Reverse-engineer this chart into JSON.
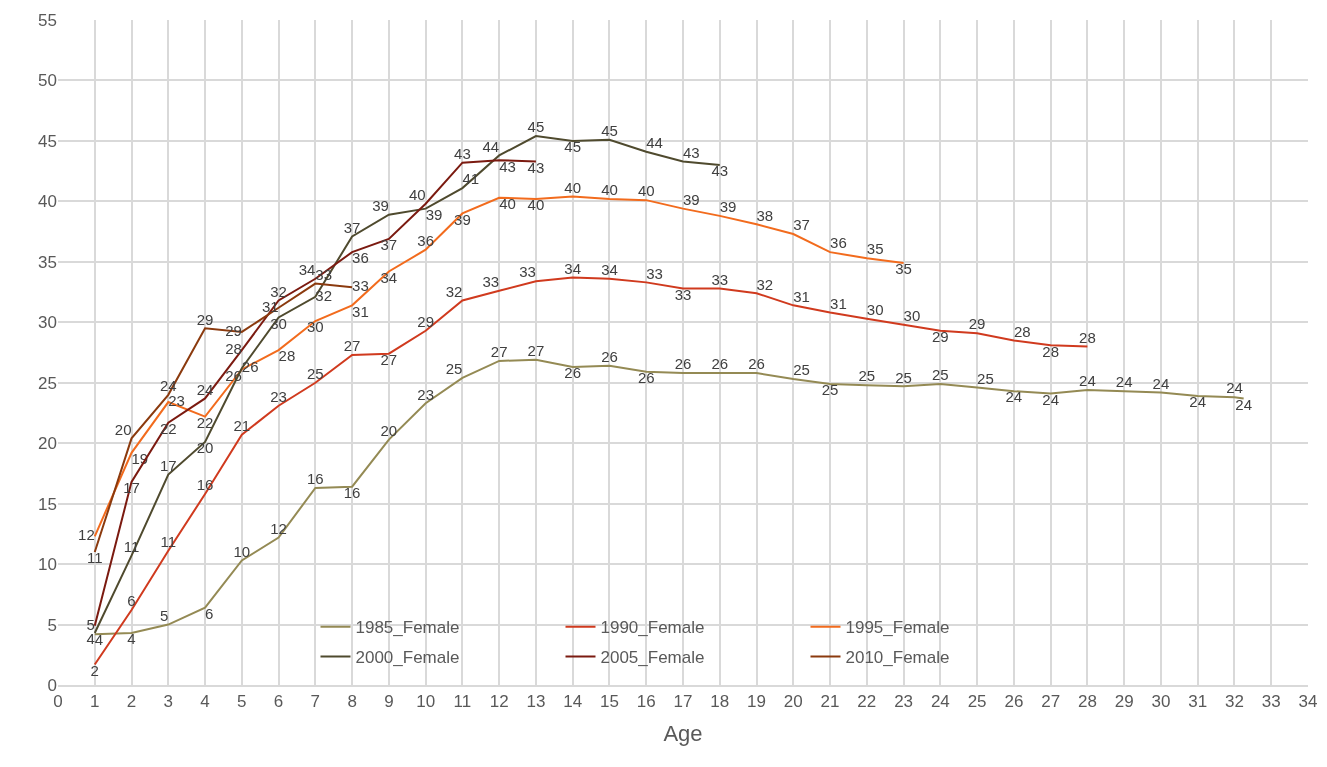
{
  "chart_data": {
    "type": "line",
    "xlabel": "Age",
    "xlim": [
      0,
      34
    ],
    "xticks": [
      0,
      1,
      2,
      3,
      4,
      5,
      6,
      7,
      8,
      9,
      10,
      11,
      12,
      13,
      14,
      15,
      16,
      17,
      18,
      19,
      20,
      21,
      22,
      23,
      24,
      25,
      26,
      27,
      28,
      29,
      30,
      31,
      32,
      33,
      34
    ],
    "ylim": [
      0,
      55
    ],
    "yticks": [
      0,
      5,
      10,
      15,
      20,
      25,
      30,
      35,
      40,
      45,
      50,
      55
    ],
    "grid": true,
    "legend": "bottom",
    "line_style": "solid",
    "series": [
      {
        "name": "1985_Female",
        "color": "#948a54",
        "x": [
          1,
          2,
          3,
          4,
          5,
          6,
          7,
          8,
          9,
          10,
          11,
          12,
          13,
          14,
          15,
          16,
          17,
          18,
          19,
          20,
          21,
          22,
          23,
          24,
          25,
          26,
          27,
          28,
          29,
          30,
          31,
          32,
          32.25
        ],
        "values": [
          4.2,
          4.3,
          5.0,
          6.4,
          10.3,
          12.2,
          16.3,
          16.4,
          20.3,
          23.3,
          25.4,
          26.8,
          26.9,
          26.3,
          26.4,
          25.9,
          25.8,
          25.8,
          25.8,
          25.3,
          24.9,
          24.8,
          24.7,
          24.9,
          24.6,
          24.3,
          24.1,
          24.4,
          24.3,
          24.2,
          23.9,
          23.8,
          23.7
        ],
        "value_labels": [
          "4",
          "4",
          "5",
          "6",
          "10",
          "12",
          "16",
          "16",
          "20",
          "23",
          "25",
          "27",
          "27",
          "26",
          "26",
          "26",
          "26",
          "26",
          "26",
          "25",
          "25",
          "25",
          "25",
          "25",
          "25",
          "24",
          "24",
          "24",
          "24",
          "24",
          "24",
          "24",
          "24"
        ]
      },
      {
        "name": "1990_Female",
        "color": "#d03a1e",
        "x": [
          1,
          2,
          3,
          4,
          5,
          6,
          7,
          8,
          9,
          10,
          11,
          12,
          13,
          14,
          15,
          16,
          17,
          18,
          19,
          20,
          21,
          22,
          23,
          24,
          25,
          26,
          27,
          28
        ],
        "values": [
          1.7,
          6.2,
          11.1,
          15.8,
          20.7,
          23.1,
          25.0,
          27.3,
          27.4,
          29.3,
          31.8,
          32.6,
          33.4,
          33.7,
          33.6,
          33.3,
          32.8,
          32.8,
          32.4,
          31.4,
          30.8,
          30.3,
          29.8,
          29.3,
          29.1,
          28.5,
          28.1,
          28.0
        ],
        "value_labels": [
          "2",
          "6",
          "11",
          "16",
          "21",
          "23",
          "25",
          "27",
          "27",
          "29",
          "32",
          "33",
          "33",
          "34",
          "34",
          "33",
          "33",
          "33",
          "32",
          "31",
          "31",
          "30",
          "30",
          "29",
          "29",
          "28",
          "28",
          "28"
        ]
      },
      {
        "name": "1995_Female",
        "color": "#f26b1d",
        "x": [
          1,
          2,
          3,
          4,
          5,
          6,
          7,
          8,
          9,
          10,
          11,
          12,
          13,
          14,
          15,
          16,
          17,
          18,
          19,
          20,
          21,
          22,
          23
        ],
        "values": [
          12.3,
          19.2,
          23.4,
          22.2,
          26.1,
          27.7,
          30.1,
          31.4,
          34.2,
          36.0,
          39.0,
          40.3,
          40.2,
          40.4,
          40.2,
          40.1,
          39.4,
          38.8,
          38.1,
          37.3,
          35.8,
          35.3,
          34.9
        ],
        "value_labels": [
          "12",
          "19",
          "23",
          "22",
          "26",
          "28",
          "30",
          "31",
          "34",
          "36",
          "39",
          "40",
          "40",
          "40",
          "40",
          "40",
          "39",
          "39",
          "38",
          "37",
          "36",
          "35",
          "35"
        ]
      },
      {
        "name": "2000_Female",
        "color": "#4f4a2e",
        "x": [
          1,
          2,
          3,
          4,
          5,
          6,
          7,
          8,
          9,
          10,
          11,
          12,
          13,
          14,
          15,
          16,
          17,
          18
        ],
        "values": [
          4.3,
          10.7,
          17.4,
          20.1,
          26.2,
          30.4,
          32.1,
          37.1,
          38.9,
          39.4,
          41.1,
          43.8,
          45.4,
          45.0,
          45.1,
          44.1,
          43.3,
          43.0
        ],
        "value_labels": [
          "4",
          "11",
          "17",
          "20",
          "26",
          "30",
          "32",
          "37",
          "39",
          "39",
          "41",
          "44",
          "45",
          "45",
          "45",
          "44",
          "43",
          "43"
        ]
      },
      {
        "name": "2005_Female",
        "color": "#7b1a10",
        "x": [
          1,
          2,
          3,
          4,
          5,
          6,
          7,
          8,
          9,
          10,
          11,
          12,
          13
        ],
        "values": [
          4.9,
          16.8,
          21.7,
          23.7,
          27.7,
          31.8,
          33.6,
          35.8,
          36.9,
          39.8,
          43.2,
          43.4,
          43.3
        ],
        "value_labels": [
          "5",
          "17",
          "22",
          "24",
          "28",
          "32",
          "34",
          "36",
          "37",
          "40",
          "43",
          "43",
          "43"
        ]
      },
      {
        "name": "2010_Female",
        "color": "#8b3a0e",
        "x": [
          1,
          2,
          3,
          4,
          5,
          6,
          7,
          8
        ],
        "values": [
          11.0,
          20.4,
          24.0,
          29.5,
          29.2,
          31.2,
          33.2,
          32.9
        ],
        "value_labels": [
          "11",
          "20",
          "24",
          "29",
          "29",
          "31",
          "33",
          "33"
        ]
      }
    ]
  }
}
